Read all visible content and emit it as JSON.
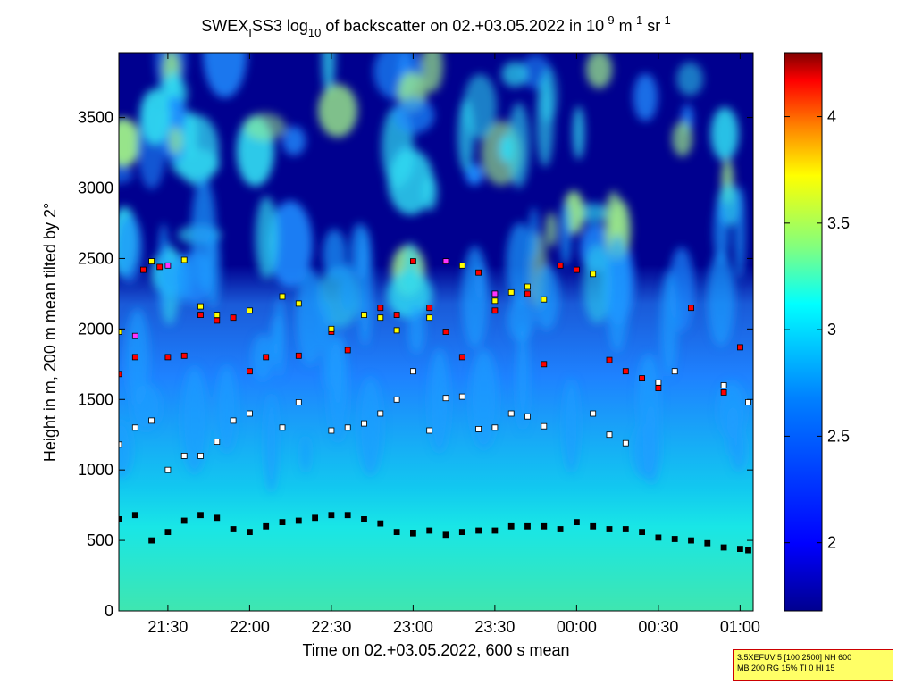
{
  "colors": {
    "background_low": "#00008f",
    "cyan_layer": "#19e6e6",
    "blue_mid": "#1e82ff",
    "marker_outline": "#000000",
    "info_box_bg": "#ffff66",
    "info_box_border": "#cc0000"
  },
  "chart_data": {
    "type": "heatmap",
    "title": "SWEX_I SS3 log10 of backscatter on 02.+03.05.2022 in 10^-9 m^-1 sr^-1",
    "title_parts": {
      "main": "SWEX",
      "sub1": "I",
      "after1": "SS3 log",
      "sub2": "10",
      "after2": " of backscatter on 02.+03.05.2022 in 10",
      "sup1": "-9",
      "after3": " m",
      "sup2": "-1",
      "after4": " sr",
      "sup3": "-1"
    },
    "xlabel": "Time on 02.+03.05.2022, 600 s mean",
    "ylabel": "Height in m, 200 m mean tilted by 2°",
    "x_ticks": [
      "21:30",
      "22:00",
      "22:30",
      "23:00",
      "23:30",
      "00:00",
      "00:30",
      "01:00"
    ],
    "x_tick_hours": [
      21.5,
      22.0,
      22.5,
      23.0,
      23.5,
      24.0,
      24.5,
      25.0
    ],
    "xlim_hours": [
      21.2,
      25.08
    ],
    "y_ticks": [
      0,
      500,
      1000,
      1500,
      2000,
      2500,
      3000,
      3500
    ],
    "ylim": [
      0,
      3960
    ],
    "colorbar": {
      "ticks": [
        "2",
        "2.5",
        "3",
        "3.5",
        "4"
      ],
      "tick_values": [
        2,
        2.5,
        3,
        3.5,
        4
      ],
      "range": [
        1.68,
        4.3
      ]
    },
    "series": [
      {
        "marker": "black",
        "points": [
          [
            21.2,
            650
          ],
          [
            21.3,
            680
          ],
          [
            21.4,
            500
          ],
          [
            21.5,
            560
          ],
          [
            21.6,
            640
          ],
          [
            21.7,
            680
          ],
          [
            21.8,
            660
          ],
          [
            21.9,
            580
          ],
          [
            22.0,
            560
          ],
          [
            22.1,
            600
          ],
          [
            22.2,
            630
          ],
          [
            22.3,
            640
          ],
          [
            22.4,
            660
          ],
          [
            22.5,
            680
          ],
          [
            22.6,
            680
          ],
          [
            22.7,
            650
          ],
          [
            22.8,
            620
          ],
          [
            22.9,
            560
          ],
          [
            23.0,
            550
          ],
          [
            23.1,
            570
          ],
          [
            23.2,
            540
          ],
          [
            23.3,
            560
          ],
          [
            23.4,
            570
          ],
          [
            23.5,
            570
          ],
          [
            23.6,
            600
          ],
          [
            23.7,
            600
          ],
          [
            23.8,
            600
          ],
          [
            23.9,
            580
          ],
          [
            24.0,
            630
          ],
          [
            24.1,
            600
          ],
          [
            24.2,
            580
          ],
          [
            24.3,
            580
          ],
          [
            24.4,
            560
          ],
          [
            24.5,
            520
          ],
          [
            24.6,
            510
          ],
          [
            24.7,
            500
          ],
          [
            24.8,
            480
          ],
          [
            24.9,
            450
          ],
          [
            25.0,
            440
          ],
          [
            25.05,
            430
          ]
        ]
      },
      {
        "marker": "white",
        "points": [
          [
            21.2,
            1180
          ],
          [
            21.3,
            1300
          ],
          [
            21.4,
            1350
          ],
          [
            21.5,
            1000
          ],
          [
            21.6,
            1100
          ],
          [
            21.7,
            1100
          ],
          [
            21.8,
            1200
          ],
          [
            21.9,
            1350
          ],
          [
            22.0,
            1400
          ],
          [
            22.2,
            1300
          ],
          [
            22.3,
            1480
          ],
          [
            22.5,
            1280
          ],
          [
            22.6,
            1300
          ],
          [
            22.7,
            1330
          ],
          [
            22.8,
            1400
          ],
          [
            22.9,
            1500
          ],
          [
            23.0,
            1700
          ],
          [
            23.1,
            1280
          ],
          [
            23.2,
            1510
          ],
          [
            23.3,
            1520
          ],
          [
            23.4,
            1290
          ],
          [
            23.5,
            1300
          ],
          [
            23.6,
            1400
          ],
          [
            23.7,
            1380
          ],
          [
            23.8,
            1310
          ],
          [
            24.1,
            1400
          ],
          [
            24.2,
            1250
          ],
          [
            24.3,
            1190
          ],
          [
            24.5,
            1620
          ],
          [
            24.6,
            1700
          ],
          [
            24.9,
            1600
          ],
          [
            25.05,
            1480
          ]
        ]
      },
      {
        "marker": "red",
        "points": [
          [
            21.2,
            1680
          ],
          [
            21.3,
            1800
          ],
          [
            21.35,
            2420
          ],
          [
            21.45,
            2440
          ],
          [
            21.5,
            1800
          ],
          [
            21.6,
            1810
          ],
          [
            21.7,
            2100
          ],
          [
            21.8,
            2060
          ],
          [
            21.9,
            2080
          ],
          [
            22.0,
            1700
          ],
          [
            22.1,
            1800
          ],
          [
            22.3,
            1810
          ],
          [
            22.5,
            1980
          ],
          [
            22.6,
            1850
          ],
          [
            22.8,
            2150
          ],
          [
            22.9,
            2100
          ],
          [
            23.0,
            2480
          ],
          [
            23.1,
            2150
          ],
          [
            23.2,
            1980
          ],
          [
            23.3,
            1800
          ],
          [
            23.4,
            2400
          ],
          [
            23.5,
            2130
          ],
          [
            23.7,
            2250
          ],
          [
            23.8,
            1750
          ],
          [
            23.9,
            2450
          ],
          [
            24.0,
            2420
          ],
          [
            24.2,
            1780
          ],
          [
            24.3,
            1700
          ],
          [
            24.4,
            1650
          ],
          [
            24.5,
            1580
          ],
          [
            24.7,
            2150
          ],
          [
            24.9,
            1550
          ],
          [
            25.0,
            1870
          ]
        ]
      },
      {
        "marker": "yellow",
        "points": [
          [
            21.2,
            1980
          ],
          [
            21.4,
            2480
          ],
          [
            21.6,
            2490
          ],
          [
            21.7,
            2160
          ],
          [
            21.8,
            2100
          ],
          [
            22.0,
            2130
          ],
          [
            22.2,
            2230
          ],
          [
            22.3,
            2180
          ],
          [
            22.5,
            2000
          ],
          [
            22.7,
            2100
          ],
          [
            22.8,
            2080
          ],
          [
            22.9,
            1990
          ],
          [
            23.1,
            2080
          ],
          [
            23.3,
            2450
          ],
          [
            23.5,
            2200
          ],
          [
            23.6,
            2260
          ],
          [
            23.7,
            2300
          ],
          [
            23.8,
            2210
          ],
          [
            24.1,
            2390
          ]
        ]
      },
      {
        "marker": "magenta",
        "points": [
          [
            21.3,
            1950
          ],
          [
            21.5,
            2450
          ],
          [
            23.2,
            2480
          ],
          [
            23.5,
            2250
          ]
        ]
      }
    ]
  },
  "info_box": {
    "line1": "3.5XEFUV 5 [100 2500] NH 600",
    "line2": "MB 200 RG 15% TI 0 HI 15"
  }
}
